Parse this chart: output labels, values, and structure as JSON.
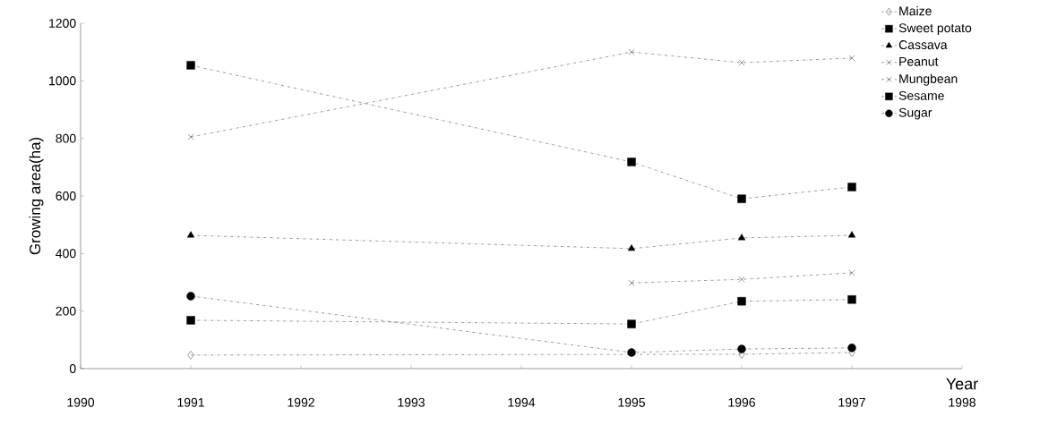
{
  "chart_data": {
    "type": "line",
    "xlabel": "Year",
    "ylabel": "Growing area(ha)",
    "x": [
      1991,
      1995,
      1996,
      1997
    ],
    "xlim": [
      1990,
      1998
    ],
    "xticks": [
      1990,
      1991,
      1992,
      1993,
      1994,
      1995,
      1996,
      1997,
      1998
    ],
    "ylim": [
      0,
      1200
    ],
    "yticks": [
      0,
      200,
      400,
      600,
      800,
      1000,
      1200
    ],
    "grid": false,
    "legend": "top right",
    "line_style": "dashed",
    "series": [
      {
        "name": "Maize",
        "color": "#000000",
        "marker": "diamond",
        "values": [
          47,
          null,
          50,
          56
        ]
      },
      {
        "name": "Sweet potato",
        "color": "#000000",
        "marker": "square",
        "values": [
          1054,
          718,
          590,
          631
        ]
      },
      {
        "name": "Cassava",
        "color": "#000000",
        "marker": "triangle",
        "values": [
          463,
          417,
          454,
          463
        ]
      },
      {
        "name": "Peanut",
        "color": "#000000",
        "marker": "cross",
        "values": [
          805,
          1100,
          1063,
          1079
        ]
      },
      {
        "name": "Mungbean",
        "color": "#000000",
        "marker": "cross",
        "values": [
          null,
          298,
          310,
          333
        ]
      },
      {
        "name": "Sesame",
        "color": "#000000",
        "marker": "square",
        "values": [
          168,
          155,
          234,
          240
        ]
      },
      {
        "name": "Sugar",
        "color": "#000000",
        "marker": "circle",
        "values": [
          252,
          56,
          68,
          72
        ]
      }
    ]
  }
}
